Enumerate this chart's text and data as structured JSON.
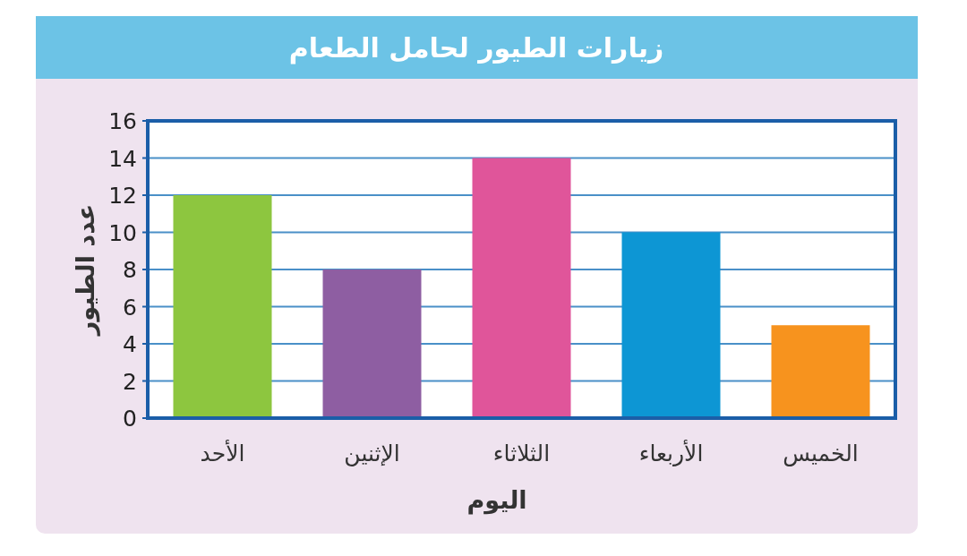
{
  "chart_data": {
    "type": "bar",
    "title": "زيارات الطيور لحامل الطعام",
    "xlabel": "اليوم",
    "ylabel": "عدد الطيور",
    "categories": [
      "الأحد",
      "الإثنين",
      "الثلاثاء",
      "الأربعاء",
      "الخميس"
    ],
    "values": [
      12,
      8,
      14,
      10,
      5
    ],
    "colors": [
      "#8dc63f",
      "#8e5ea2",
      "#e0559a",
      "#0d96d4",
      "#f7931e"
    ],
    "ylim": [
      0,
      16
    ],
    "yticks": [
      0,
      2,
      4,
      6,
      8,
      10,
      12,
      14,
      16
    ],
    "grid": "y"
  }
}
